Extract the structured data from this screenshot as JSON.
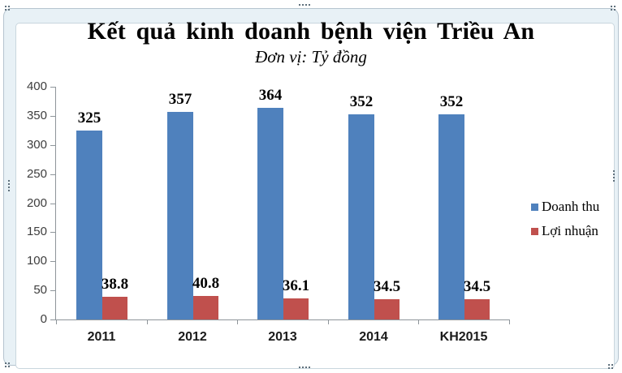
{
  "chart_data": {
    "type": "bar",
    "title": "Kết quả kinh doanh bệnh viện Triều An",
    "subtitle": "Đơn vị: Tỷ đồng",
    "categories": [
      "2011",
      "2012",
      "2013",
      "2014",
      "KH2015"
    ],
    "series": [
      {
        "name": "Doanh thu",
        "color": "#4F81BD",
        "values": [
          325,
          357,
          364,
          352,
          352
        ]
      },
      {
        "name": "Lợi nhuận",
        "color": "#C0504D",
        "values": [
          38.8,
          40.8,
          36.1,
          34.5,
          34.5
        ]
      }
    ],
    "ylim": [
      0,
      400
    ],
    "yticks": [
      0,
      50,
      100,
      150,
      200,
      250,
      300,
      350,
      400
    ],
    "grid": false,
    "legend_position": "right",
    "axis_color": "#8e959a"
  }
}
